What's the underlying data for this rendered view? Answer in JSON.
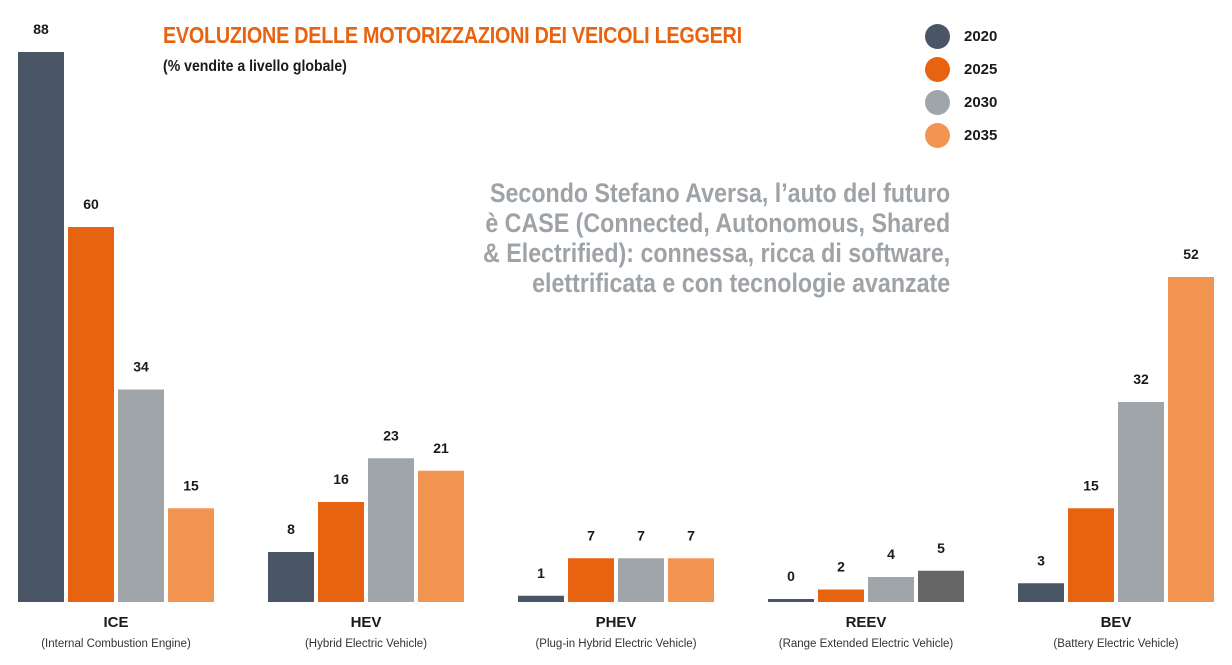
{
  "chart_data": {
    "type": "bar",
    "title": "EVOLUZIONE DELLE MOTORIZZAZIONI DEI VEICOLI LEGGERI",
    "subtitle": "(% vendite a livello globale)",
    "xlabel": "",
    "ylabel": "",
    "ylim": [
      0,
      88
    ],
    "grid": false,
    "legend_position": "top-right",
    "categories": [
      "ICE",
      "HEV",
      "PHEV",
      "REEV",
      "BEV"
    ],
    "category_descriptions": [
      "(Internal Combustion Engine)",
      "(Hybrid Electric Vehicle)",
      "(Plug-in Hybrid Electric Vehicle)",
      "(Range Extended Electric Vehicle)",
      "(Battery Electric Vehicle)"
    ],
    "series": [
      {
        "name": "2020",
        "color": "#4a5566",
        "values": [
          88,
          8,
          1,
          0,
          3
        ]
      },
      {
        "name": "2025",
        "color": "#e8630f",
        "values": [
          60,
          16,
          7,
          2,
          15
        ]
      },
      {
        "name": "2030",
        "color": "#a0a5aa",
        "values": [
          34,
          23,
          7,
          4,
          32
        ]
      },
      {
        "name": "2035",
        "color": "#f29552",
        "values": [
          15,
          21,
          7,
          5,
          52
        ]
      }
    ],
    "bar_color_overrides": [
      {
        "series": "2035",
        "category": "REEV",
        "color": "#666666"
      }
    ],
    "annotation": [
      "Secondo Stefano Aversa, l’auto del futuro",
      "è CASE (Connected, Autonomous, Shared",
      "& Electrified): connessa, ricca di software,",
      "elettrificata e con tecnologie avanzate"
    ]
  }
}
